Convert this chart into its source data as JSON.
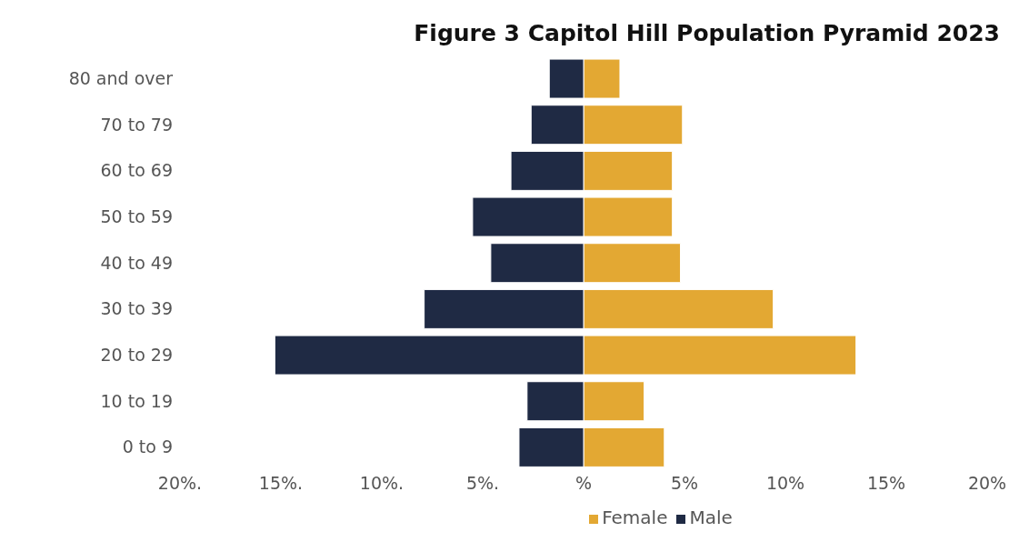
{
  "chart_data": {
    "type": "bar",
    "orientation": "horizontal",
    "stacked": true,
    "title": "Figure 3 Capitol Hill Population Pyramid 2023",
    "categories": [
      "80 and over",
      "70 to 79",
      "60 to 69",
      "50 to 59",
      "40 to 49",
      "30 to 39",
      "20 to 29",
      "10 to 19",
      "0 to 9"
    ],
    "series": [
      {
        "name": "Female",
        "color": "#e3a833",
        "values": [
          1.8,
          4.9,
          4.4,
          4.4,
          4.8,
          9.4,
          13.5,
          3.0,
          4.0
        ]
      },
      {
        "name": "Male",
        "color": "#1f2a44",
        "values": [
          -1.7,
          -2.6,
          -3.6,
          -5.5,
          -4.6,
          -7.9,
          -15.3,
          -2.8,
          -3.2
        ]
      }
    ],
    "xlim": [
      -20,
      20
    ],
    "xticks": [
      {
        "value": -20,
        "label": "20%."
      },
      {
        "value": -15,
        "label": "15%."
      },
      {
        "value": -10,
        "label": "10%."
      },
      {
        "value": -5,
        "label": "5%."
      },
      {
        "value": 0,
        "label": "%"
      },
      {
        "value": 5,
        "label": "5%"
      },
      {
        "value": 10,
        "label": "10%"
      },
      {
        "value": 15,
        "label": "15%"
      },
      {
        "value": 20,
        "label": "20%"
      }
    ],
    "grid": false,
    "legend": "bottom"
  }
}
